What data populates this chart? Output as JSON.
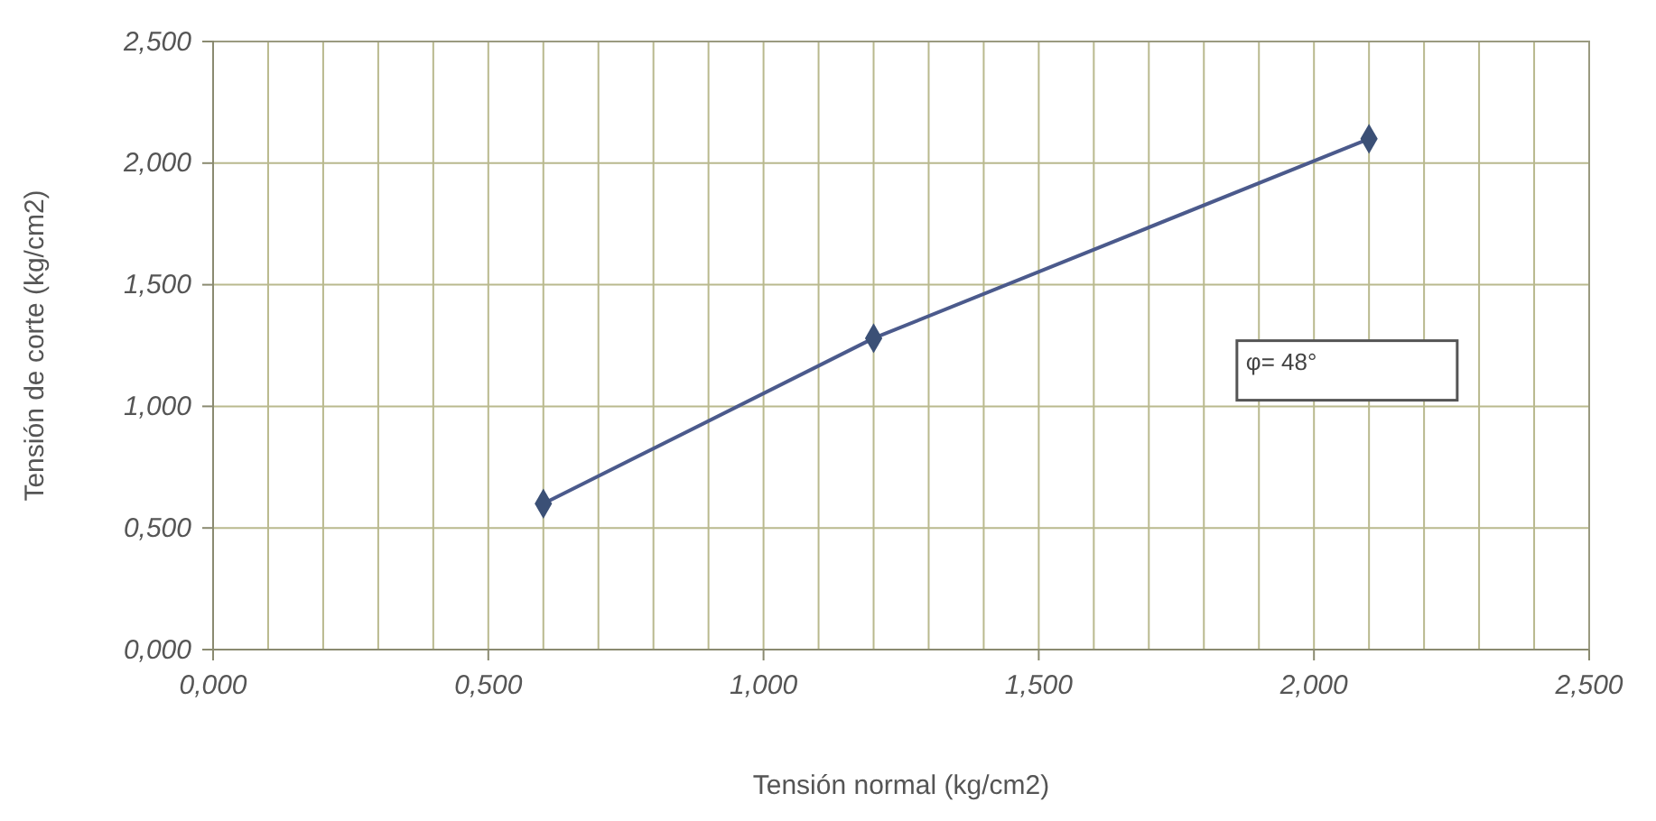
{
  "chart_data": {
    "type": "line",
    "xlabel": "Tensión normal (kg/cm2)",
    "ylabel": "Tensión de corte (kg/cm2)",
    "x": [
      0.6,
      1.2,
      2.1
    ],
    "series": [
      {
        "color": "#4b5a8c",
        "values": [
          0.6,
          1.28,
          2.1
        ]
      }
    ],
    "xlim": [
      0,
      2.5
    ],
    "ylim": [
      0,
      2.5
    ],
    "xticks": [
      {
        "value": 0,
        "label": "0,000"
      },
      {
        "value": 0.1,
        "label": null
      },
      {
        "value": 0.2,
        "label": null
      },
      {
        "value": 0.3,
        "label": null
      },
      {
        "value": 0.4,
        "label": null
      },
      {
        "value": 0.5,
        "label": "0,500"
      },
      {
        "value": 0.6,
        "label": null
      },
      {
        "value": 0.7,
        "label": null
      },
      {
        "value": 0.8,
        "label": null
      },
      {
        "value": 0.9,
        "label": null
      },
      {
        "value": 1,
        "label": "1,000"
      },
      {
        "value": 1.1,
        "label": null
      },
      {
        "value": 1.2,
        "label": null
      },
      {
        "value": 1.3,
        "label": null
      },
      {
        "value": 1.4,
        "label": null
      },
      {
        "value": 1.5,
        "label": "1,500"
      },
      {
        "value": 1.6,
        "label": null
      },
      {
        "value": 1.7,
        "label": null
      },
      {
        "value": 1.8,
        "label": null
      },
      {
        "value": 1.9,
        "label": null
      },
      {
        "value": 2,
        "label": "2,000"
      },
      {
        "value": 2.1,
        "label": null
      },
      {
        "value": 2.2,
        "label": null
      },
      {
        "value": 2.3,
        "label": null
      },
      {
        "value": 2.4,
        "label": null
      },
      {
        "value": 2.5,
        "label": "2,500"
      }
    ],
    "yticks": [
      {
        "value": 0,
        "label": "0,000"
      },
      {
        "value": 0.5,
        "label": "0,500"
      },
      {
        "value": 1,
        "label": "1,000"
      },
      {
        "value": 1.5,
        "label": "1,500"
      },
      {
        "value": 2,
        "label": "2,000"
      },
      {
        "value": 2.5,
        "label": "2,500"
      }
    ],
    "grid": true,
    "marker": "diamond",
    "line_style": "solid",
    "annotations": [
      "φ= 48°"
    ]
  }
}
